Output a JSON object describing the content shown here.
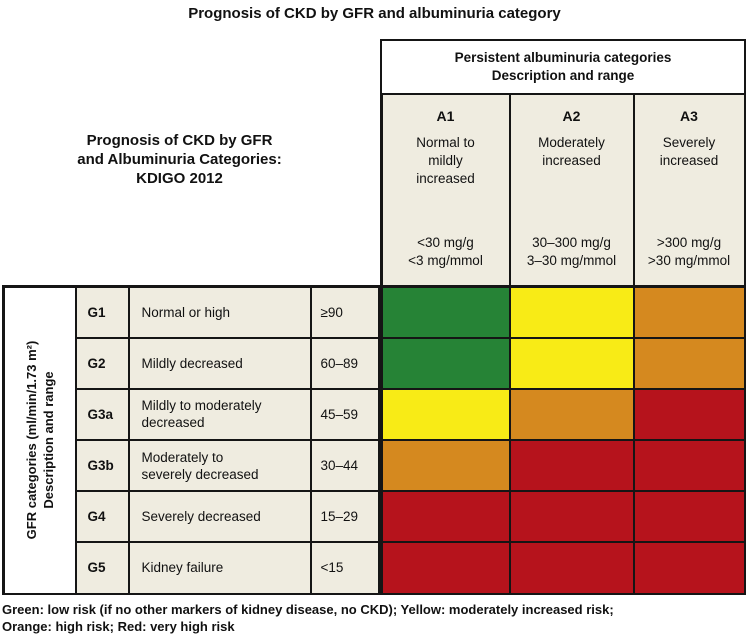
{
  "title": "Prognosis of CKD by GFR and albuminuria category",
  "left_caption": "Prognosis of CKD by GFR\nand Albuminuria Categories:\nKDIGO 2012",
  "albuminuria": {
    "header": "Persistent albuminuria categories\nDescription and range",
    "columns": [
      {
        "code": "A1",
        "description": "Normal to\nmildly\nincreased",
        "range": "<30 mg/g\n<3 mg/mmol"
      },
      {
        "code": "A2",
        "description": "Moderately\nincreased",
        "range": "30–300 mg/g\n3–30 mg/mmol"
      },
      {
        "code": "A3",
        "description": "Severely\nincreased",
        "range": ">300 mg/g\n>30 mg/mmol"
      }
    ]
  },
  "gfr": {
    "axis_label": "GFR categories (ml/min/1.73 m²)\nDescription and range",
    "rows": [
      {
        "code": "G1",
        "description": "Normal or high",
        "range": "≥90"
      },
      {
        "code": "G2",
        "description": "Mildly decreased",
        "range": "60–89"
      },
      {
        "code": "G3a",
        "description": "Mildly to moderately\ndecreased",
        "range": "45–59"
      },
      {
        "code": "G3b",
        "description": "Moderately to\nseverely decreased",
        "range": "30–44"
      },
      {
        "code": "G4",
        "description": "Severely decreased",
        "range": "15–29"
      },
      {
        "code": "G5",
        "description": "Kidney failure",
        "range": "<15"
      }
    ]
  },
  "colors": {
    "green": "#268336",
    "yellow": "#F8EB16",
    "orange": "#D5891F",
    "red": "#B6131C",
    "beige": "#EFECE0",
    "ink": "#151515"
  },
  "legend": "Green: low risk (if no other markers of kidney disease, no CKD); Yellow: moderately increased risk;\nOrange: high risk; Red: very high risk",
  "chart_data": {
    "type": "heatmap",
    "title": "Prognosis of CKD by GFR and albuminuria category",
    "x_categories": [
      "A1",
      "A2",
      "A3"
    ],
    "x_descriptions": [
      "Normal to mildly increased (<30 mg/g, <3 mg/mmol)",
      "Moderately increased (30–300 mg/g, 3–30 mg/mmol)",
      "Severely increased (>300 mg/g, >30 mg/mmol)"
    ],
    "y_categories": [
      "G1",
      "G2",
      "G3a",
      "G3b",
      "G4",
      "G5"
    ],
    "y_descriptions": [
      "Normal or high (≥90)",
      "Mildly decreased (60–89)",
      "Mildly to moderately decreased (45–59)",
      "Moderately to severely decreased (30–44)",
      "Severely decreased (15–29)",
      "Kidney failure (<15)"
    ],
    "xlabel": "Persistent albuminuria categories — Description and range",
    "ylabel": "GFR categories (ml/min/1.73 m²) — Description and range",
    "values": [
      [
        "green",
        "yellow",
        "orange"
      ],
      [
        "green",
        "yellow",
        "orange"
      ],
      [
        "yellow",
        "orange",
        "red"
      ],
      [
        "orange",
        "red",
        "red"
      ],
      [
        "red",
        "red",
        "red"
      ],
      [
        "red",
        "red",
        "red"
      ]
    ],
    "value_legend": {
      "green": "low risk (if no other markers of kidney disease, no CKD)",
      "yellow": "moderately increased risk",
      "orange": "high risk",
      "red": "very high risk"
    }
  }
}
